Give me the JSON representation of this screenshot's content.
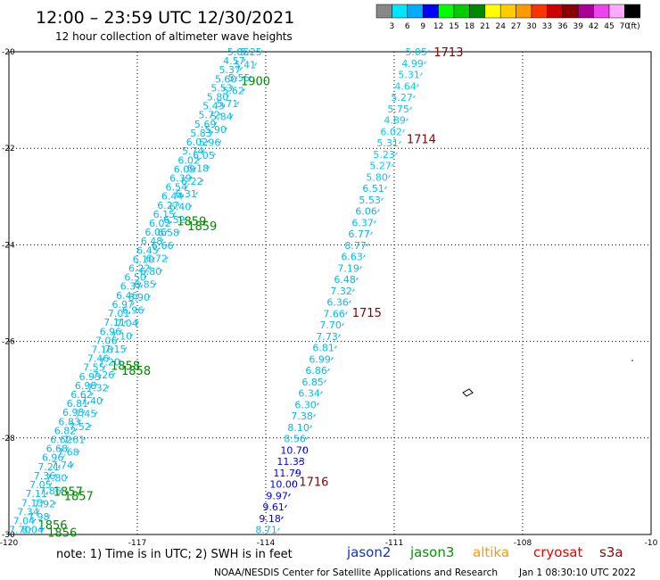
{
  "header": {
    "title": "12:00 – 23:59 UTC 12/30/2021",
    "subtitle": "12 hour collection of altimeter wave heights"
  },
  "color_scale": {
    "labels": [
      "3",
      "6",
      "9",
      "12",
      "15",
      "18",
      "21",
      "24",
      "27",
      "30",
      "33",
      "36",
      "39",
      "42",
      "45",
      "70"
    ],
    "unit": "(ft)",
    "colors": [
      "#888888",
      "#00e5ff",
      "#00aaff",
      "#0000ff",
      "#00ff00",
      "#00cc00",
      "#008800",
      "#ffff00",
      "#ffcc00",
      "#ff9900",
      "#ff3300",
      "#cc0000",
      "#880000",
      "#aa0099",
      "#ee44ee",
      "#ffaaff",
      "#000000"
    ]
  },
  "axes": {
    "lon_ticks": [
      "-120",
      "-117",
      "-114",
      "-111",
      "-108",
      "-10"
    ],
    "lat_ticks": [
      "-20",
      "-22",
      "-24",
      "-26",
      "-28",
      "-30"
    ]
  },
  "chart_data": {
    "type": "scatter",
    "lon_range": [
      -120,
      -105
    ],
    "lat_range": [
      -30,
      -20
    ],
    "series": [
      {
        "name": "jason3",
        "color": "#00bbee",
        "time_color": "#008800",
        "tracks": [
          {
            "start": [
              -114.4,
              -20.0
            ],
            "end": [
              -119.5,
              -29.9
            ],
            "times": [
              {
                "label": "1900",
                "lat": -20.6
              },
              {
                "label": "1859",
                "lat": -23.5
              },
              {
                "label": "1858",
                "lat": -26.5
              },
              {
                "label": "1857",
                "lat": -29.1
              },
              {
                "label": "1856",
                "lat": -29.8
              }
            ],
            "values": [
              "5.06",
              "4.57",
              "5.37",
              "5.60",
              "5.53",
              "5.80",
              "5.43",
              "5.72",
              "5.69",
              "5.83",
              "6.02",
              "5.74",
              "6.02",
              "6.09",
              "6.39",
              "6.54",
              "6.44",
              "6.27",
              "6.15",
              "6.02",
              "6.06",
              "6.48",
              "6.45",
              "6.10",
              "6.22",
              "6.50",
              "6.37",
              "6.46",
              "6.97",
              "7.01",
              "7.11",
              "6.96",
              "7.06",
              "7.18",
              "7.46",
              "7.55",
              "6.93",
              "6.98",
              "6.62",
              "6.81",
              "6.93",
              "6.83",
              "6.82",
              "6.62",
              "6.68",
              "6.96",
              "7.21",
              "7.36",
              "7.05",
              "7.11",
              "7.13",
              "7.34",
              "7.04",
              "7.70"
            ]
          },
          {
            "start": [
              -114.1,
              -20.0
            ],
            "end": [
              -119.2,
              -29.9
            ],
            "times": [
              {
                "label": "1859",
                "lat": -23.6
              },
              {
                "label": "1858",
                "lat": -26.6
              },
              {
                "label": "1857",
                "lat": -29.2
              },
              {
                "label": "1856",
                "lat": -29.95
              }
            ],
            "values": [
              "5.25",
              "5.41",
              "5.55",
              "5.62",
              "5.71",
              "5.84",
              "5.90",
              "5.96",
              "6.05",
              "6.18",
              "6.22",
              "6.31",
              "6.40",
              "6.52",
              "6.58",
              "6.66",
              "6.72",
              "6.80",
              "6.85",
              "6.90",
              "6.96",
              "7.04",
              "7.10",
              "7.15",
              "7.20",
              "7.26",
              "7.32",
              "7.40",
              "7.45",
              "7.52",
              "7.61",
              "7.68",
              "7.74",
              "7.80",
              "7.86",
              "7.92",
              "7.98",
              "8.04"
            ]
          }
        ]
      },
      {
        "name": "jason2",
        "color": "#1133cc",
        "values": []
      },
      {
        "name": "altika",
        "color": "#ff9900",
        "values": []
      },
      {
        "name": "cryosat",
        "color": "#ee0000",
        "values": []
      },
      {
        "name": "s3a",
        "color": "#990000",
        "time_color": "#880000",
        "track": {
          "start": [
            -110.2,
            -20.0
          ],
          "end": [
            -113.7,
            -29.9
          ],
          "times": [
            {
              "label": "1713",
              "lat": -20.0
            },
            {
              "label": "1714",
              "lat": -21.8
            },
            {
              "label": "1715",
              "lat": -25.4
            },
            {
              "label": "1716",
              "lat": -28.9
            }
          ],
          "points": [
            {
              "v": "5.05",
              "c": "#00ccee"
            },
            {
              "v": "4.99",
              "c": "#00ccee"
            },
            {
              "v": "5.31",
              "c": "#00ccee"
            },
            {
              "v": "4.64",
              "c": "#00ccee"
            },
            {
              "v": "5.27",
              "c": "#00ccee"
            },
            {
              "v": "5.75",
              "c": "#00ccee"
            },
            {
              "v": "4.89",
              "c": "#00ccee"
            },
            {
              "v": "6.02",
              "c": "#00ccee"
            },
            {
              "v": "5.31",
              "c": "#00ccee"
            },
            {
              "v": "5.23",
              "c": "#00ccee"
            },
            {
              "v": "5.27",
              "c": "#00ccee"
            },
            {
              "v": "5.80",
              "c": "#00ccee"
            },
            {
              "v": "6.51",
              "c": "#00bbee"
            },
            {
              "v": "5.53",
              "c": "#00bbee"
            },
            {
              "v": "6.06",
              "c": "#00bbee"
            },
            {
              "v": "6.37",
              "c": "#00bbee"
            },
            {
              "v": "6.77",
              "c": "#00bbee"
            },
            {
              "v": "8.77",
              "c": "#00bbee"
            },
            {
              "v": "6.63",
              "c": "#00bbee"
            },
            {
              "v": "7.19",
              "c": "#00bbee"
            },
            {
              "v": "6.48",
              "c": "#00bbee"
            },
            {
              "v": "7.32",
              "c": "#00bbee"
            },
            {
              "v": "6.36",
              "c": "#00bbee"
            },
            {
              "v": "7.66",
              "c": "#00bbee"
            },
            {
              "v": "7.70",
              "c": "#00bbee"
            },
            {
              "v": "7.73",
              "c": "#00bbee"
            },
            {
              "v": "6.81",
              "c": "#00bbee"
            },
            {
              "v": "6.99",
              "c": "#00bbee"
            },
            {
              "v": "6.86",
              "c": "#00bbee"
            },
            {
              "v": "6.85",
              "c": "#00bbee"
            },
            {
              "v": "6.34",
              "c": "#00bbee"
            },
            {
              "v": "6.30",
              "c": "#00bbee"
            },
            {
              "v": "7.38",
              "c": "#00bbee"
            },
            {
              "v": "8.10",
              "c": "#00bbee"
            },
            {
              "v": "8.56",
              "c": "#00bbee"
            },
            {
              "v": "10.70",
              "c": "#0000ee"
            },
            {
              "v": "11.33",
              "c": "#0000ee"
            },
            {
              "v": "11.79",
              "c": "#0000ee"
            },
            {
              "v": "10.00",
              "c": "#0000ee"
            },
            {
              "v": "9.97",
              "c": "#0000ee"
            },
            {
              "v": "9.61",
              "c": "#0000ee"
            },
            {
              "v": "9.18",
              "c": "#0000ee"
            },
            {
              "v": "8.71",
              "c": "#00bbee"
            }
          ]
        }
      }
    ]
  },
  "legend": [
    {
      "name": "jason2",
      "color": "#1133cc"
    },
    {
      "name": "jason3",
      "color": "#009900"
    },
    {
      "name": "altika",
      "color": "#ff9900"
    },
    {
      "name": "cryosat",
      "color": "#ee0000"
    },
    {
      "name": "s3a",
      "color": "#990000"
    }
  ],
  "footer": {
    "note": "note: 1) Time is in UTC; 2) SWH is in feet",
    "credit": "NOAA/NESDIS Center for Satellite Applications and Research",
    "timestamp": "Jan  1 08:30:10 UTC 2022"
  }
}
